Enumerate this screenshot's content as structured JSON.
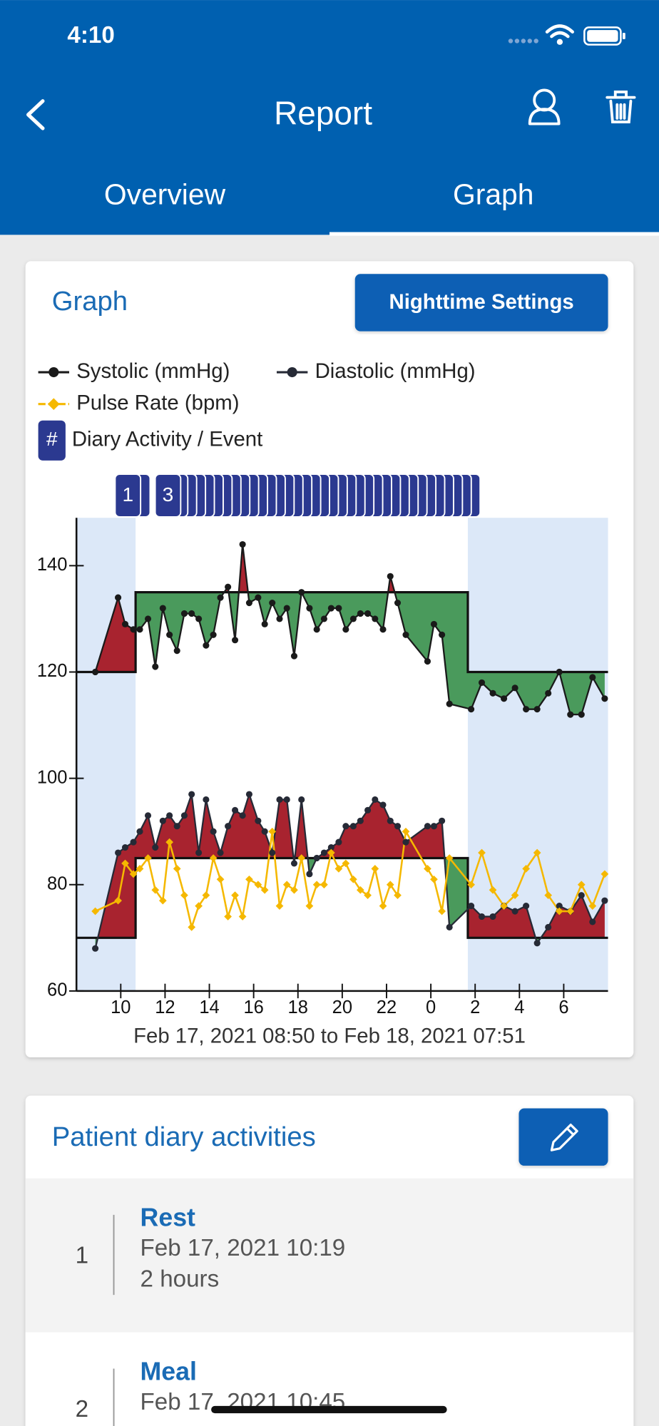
{
  "status_bar": {
    "time": "4:10"
  },
  "header": {
    "title": "Report"
  },
  "tabs": {
    "items": [
      "Overview",
      "Graph"
    ],
    "selected": 1
  },
  "graph_card": {
    "title": "Graph",
    "button": "Nighttime Settings"
  },
  "chart_data": {
    "type": "line",
    "xlabel": "Feb 17, 2021 08:50 to Feb 18, 2021 07:51",
    "xlim": [
      8,
      32
    ],
    "ylim": [
      60,
      149
    ],
    "yticks": [
      60,
      80,
      100,
      120,
      140
    ],
    "xticks": [
      10,
      12,
      14,
      16,
      18,
      20,
      22,
      {
        "value": 24,
        "label": "0"
      },
      {
        "value": 26,
        "label": "2"
      },
      {
        "value": 28,
        "label": "4"
      },
      {
        "value": 30,
        "label": "6"
      }
    ],
    "night_periods": [
      [
        8,
        10.67
      ],
      [
        25.67,
        32
      ]
    ],
    "night_color": "#dce8f8",
    "above_color": "#a8232f",
    "below_color": "#4a9a5c",
    "x": [
      8.85,
      9.88,
      10.2,
      10.57,
      10.86,
      11.23,
      11.56,
      11.9,
      12.2,
      12.54,
      12.87,
      13.2,
      13.52,
      13.85,
      14.18,
      14.5,
      14.84,
      15.16,
      15.5,
      15.8,
      16.2,
      16.5,
      16.84,
      17.17,
      17.5,
      17.83,
      18.16,
      18.52,
      18.85,
      19.18,
      19.5,
      19.84,
      20.16,
      20.5,
      20.82,
      21.15,
      21.48,
      21.84,
      22.17,
      22.5,
      22.87,
      23.85,
      24.14,
      24.5,
      24.84,
      25.82,
      26.3,
      26.8,
      27.3,
      27.8,
      28.3,
      28.8,
      29.3,
      29.8,
      30.3,
      30.8,
      31.3,
      31.85
    ],
    "series": [
      {
        "name": "Systolic (mmHg)",
        "color": "#1a1a1a",
        "marker": "circle",
        "day_limit": 135,
        "night_limit": 120,
        "values": [
          120,
          134,
          129,
          128,
          128,
          130,
          121,
          132,
          127,
          124,
          131,
          131,
          130,
          125,
          127,
          134,
          136,
          126,
          144,
          133,
          134,
          129,
          133,
          130,
          132,
          123,
          135,
          132,
          128,
          130,
          132,
          132,
          128,
          130,
          131,
          131,
          130,
          128,
          138,
          133,
          127,
          122,
          129,
          127,
          114,
          113,
          118,
          116,
          115,
          117,
          113,
          113,
          116,
          120,
          112,
          112,
          119,
          115
        ]
      },
      {
        "name": "Diastolic (mmHg)",
        "color": "#262a36",
        "marker": "circle",
        "day_limit": 85,
        "night_limit": 70,
        "values": [
          68,
          86,
          87,
          88,
          90,
          93,
          87,
          92,
          93,
          91,
          93,
          97,
          86,
          96,
          90,
          86,
          91,
          94,
          93,
          97,
          92,
          90,
          86,
          96,
          96,
          84,
          96,
          82,
          85,
          86,
          87,
          88,
          91,
          91,
          92,
          94,
          96,
          95,
          92,
          91,
          88,
          91,
          91,
          92,
          72,
          76,
          74,
          74,
          76,
          75,
          76,
          69,
          72,
          76,
          75,
          78,
          73,
          77
        ]
      },
      {
        "name": "Pulse Rate (bpm)",
        "color": "#f5b800",
        "marker": "diamond",
        "values": [
          75,
          77,
          84,
          82,
          83,
          85,
          79,
          77,
          88,
          83,
          78,
          72,
          76,
          78,
          85,
          81,
          74,
          78,
          74,
          81,
          80,
          79,
          90,
          76,
          80,
          79,
          85,
          76,
          80,
          80,
          86,
          83,
          84,
          81,
          79,
          78,
          83,
          76,
          80,
          78,
          90,
          83,
          81,
          75,
          85,
          80,
          86,
          79,
          76,
          78,
          83,
          86,
          78,
          75,
          75,
          80,
          76,
          82
        ]
      }
    ],
    "diary_legend": "Diary Activity / Event",
    "diary_symbol": "#",
    "diary_color": "#2b3990",
    "diary_markers": {
      "x": [
        10.32,
        10.75,
        12.13,
        12.45,
        12.85,
        13.25,
        13.65,
        14.05,
        14.45,
        14.85,
        15.25,
        15.65,
        16.05,
        16.45,
        16.85,
        17.25,
        17.65,
        18.05,
        18.45,
        18.85,
        19.25,
        19.65,
        20.05,
        20.45,
        20.85,
        21.25,
        21.65,
        22.05,
        22.45,
        22.85,
        23.25,
        23.65,
        24.05,
        24.45,
        24.85,
        25.25,
        25.65
      ],
      "labels": [
        1,
        null,
        3,
        null,
        null,
        null,
        null,
        null,
        null,
        null,
        null,
        null,
        null,
        null,
        null,
        null,
        null,
        null,
        null,
        null,
        null,
        null,
        null,
        null,
        null,
        null,
        null,
        null,
        null,
        null,
        null,
        null,
        null,
        null,
        null,
        null,
        null
      ]
    }
  },
  "diary": {
    "title": "Patient diary activities",
    "items": [
      {
        "number": 1,
        "activity": "Rest",
        "date": "Feb 17, 2021 10:19",
        "duration": "2 hours"
      },
      {
        "number": 2,
        "activity": "Meal",
        "date": "Feb 17, 2021 10:45"
      }
    ]
  }
}
